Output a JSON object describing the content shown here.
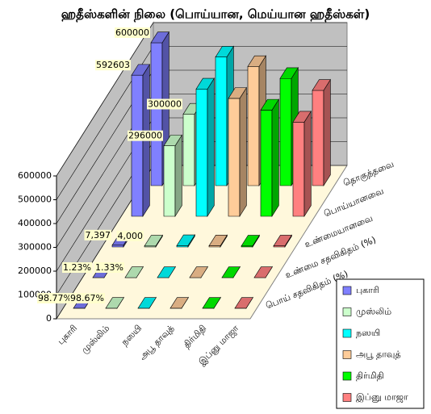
{
  "chart_data": {
    "type": "bar3d",
    "title": "ஹதீஸ்களின் நிலை (பொய்யான, மெய்யான ஹதீஸ்கள்)",
    "categories": [
      "புகாரி",
      "முஸ்லிம்",
      "நஸயி",
      "அபூ தாவுத்",
      "திர்மிதி",
      "இப்னு மாஜா"
    ],
    "colors": [
      "#8080ff",
      "#ccffcc",
      "#00ffff",
      "#ffcc99",
      "#00ff00",
      "#ff8080"
    ],
    "series": [
      {
        "name": "தொகுத்தவை",
        "values": [
          600000,
          300000,
          540000,
          500000,
          450000,
          400000
        ],
        "value_labels": [
          "600000",
          "300000",
          null,
          null,
          null,
          null
        ]
      },
      {
        "name": "பொய்யானவை",
        "values": [
          592603,
          296000,
          534300,
          495200,
          446000,
          395700
        ],
        "value_labels": [
          "592603",
          "296000",
          null,
          null,
          null,
          null
        ]
      },
      {
        "name": "உண்மையானவை",
        "values": [
          7397,
          4000,
          5700,
          4800,
          4000,
          4300
        ],
        "value_labels": [
          "7,397",
          "4,000",
          null,
          null,
          null,
          null
        ]
      },
      {
        "name": "உண்மை சதவிகிதம் (%)",
        "values": [
          1.23,
          1.33,
          1.06,
          0.96,
          0.89,
          1.08
        ],
        "value_labels": [
          "1.23%",
          "1.33%",
          null,
          null,
          null,
          null
        ]
      },
      {
        "name": "பொய் சதவிகிதம் (%)",
        "values": [
          98.77,
          98.67,
          98.94,
          99.04,
          99.11,
          98.92
        ],
        "value_labels": [
          "98.77%",
          "98.67%",
          null,
          null,
          null,
          null
        ]
      }
    ],
    "ylim": [
      0,
      600000
    ],
    "yticks": [
      0,
      100000,
      200000,
      300000,
      400000,
      500000,
      600000
    ],
    "grid": true,
    "legend": "bottom-right"
  }
}
